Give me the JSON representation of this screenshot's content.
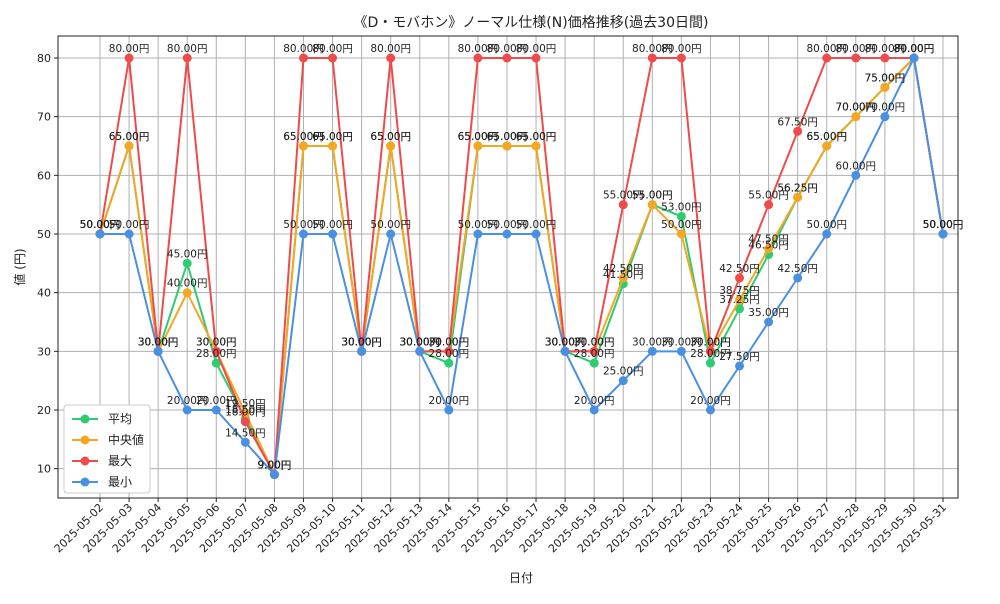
{
  "chart_data": {
    "type": "line",
    "title": "《D・モバホン》ノーマル仕様(N)価格推移(過去30日間)",
    "xlabel": "日付",
    "ylabel": "値 (円)",
    "ylim": [
      5,
      83.75
    ],
    "yticks": [
      10,
      20,
      30,
      40,
      50,
      60,
      70,
      80
    ],
    "grid": true,
    "legend_position": "lower-left",
    "value_suffix": "円",
    "categories": [
      "2025-05-02",
      "2025-05-03",
      "2025-05-04",
      "2025-05-05",
      "2025-05-06",
      "2025-05-07",
      "2025-05-08",
      "2025-05-09",
      "2025-05-10",
      "2025-05-11",
      "2025-05-12",
      "2025-05-13",
      "2025-05-14",
      "2025-05-15",
      "2025-05-16",
      "2025-05-17",
      "2025-05-18",
      "2025-05-19",
      "2025-05-20",
      "2025-05-21",
      "2025-05-22",
      "2025-05-23",
      "2025-05-24",
      "2025-05-25",
      "2025-05-26",
      "2025-05-27",
      "2025-05-28",
      "2025-05-29",
      "2025-05-30",
      "2025-05-31"
    ],
    "series": [
      {
        "name": "平均",
        "color": "#2ecc71",
        "values": [
          50,
          65,
          30,
          45,
          28,
          18.5,
          9,
          65,
          65,
          30,
          65,
          30,
          28,
          65,
          65,
          65,
          30,
          28,
          41.5,
          55,
          53,
          28,
          37.25,
          46.5,
          56.25,
          65,
          70,
          75,
          80,
          50
        ]
      },
      {
        "name": "中央値",
        "color": "#f5a623",
        "values": [
          50,
          65,
          30,
          40,
          30,
          19.5,
          9,
          65,
          65,
          30,
          65,
          30,
          30,
          65,
          65,
          65,
          30,
          30,
          42.5,
          55,
          50,
          30,
          38.75,
          47.5,
          56.25,
          65,
          70,
          75,
          80,
          50
        ]
      },
      {
        "name": "最大",
        "color": "#ef4b4b",
        "values": [
          50,
          80,
          30,
          80,
          30,
          18,
          9,
          80,
          80,
          30,
          80,
          30,
          30,
          80,
          80,
          80,
          30,
          30,
          55,
          80,
          80,
          30,
          42.5,
          55,
          67.5,
          80,
          80,
          80,
          80,
          50
        ]
      },
      {
        "name": "最小",
        "color": "#4a90e2",
        "values": [
          50,
          50,
          30,
          20,
          20,
          14.5,
          9,
          50,
          50,
          30,
          50,
          30,
          20,
          50,
          50,
          50,
          30,
          20,
          25,
          30,
          30,
          20,
          27.5,
          35,
          42.5,
          50,
          60,
          70,
          80,
          50
        ]
      }
    ]
  }
}
